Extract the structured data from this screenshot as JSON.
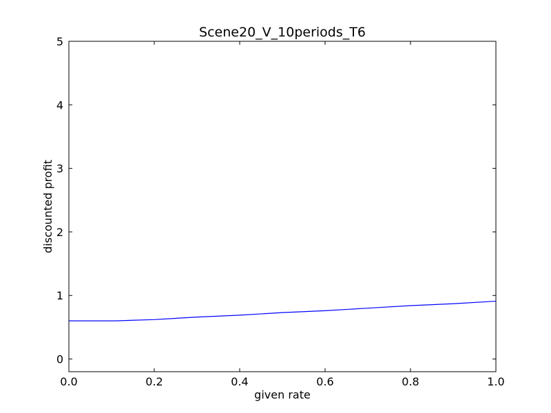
{
  "chart_data": {
    "type": "line",
    "title": "Scene20_V_10periods_T6",
    "xlabel": "given rate",
    "ylabel": "discounted profit",
    "xlim": [
      0.0,
      1.0
    ],
    "ylim": [
      -0.2,
      5.0
    ],
    "xticks": [
      "0.0",
      "0.2",
      "0.4",
      "0.6",
      "0.8",
      "1.0"
    ],
    "yticks": [
      "0",
      "1",
      "2",
      "3",
      "4",
      "5"
    ],
    "grid": false,
    "series": [
      {
        "color": "#0000ff",
        "x": [
          0.0,
          0.05,
          0.11,
          0.15,
          0.2,
          0.3,
          0.4,
          0.5,
          0.6,
          0.7,
          0.8,
          0.9,
          1.0
        ],
        "y": [
          0.6,
          0.6,
          0.6,
          0.61,
          0.62,
          0.66,
          0.69,
          0.73,
          0.76,
          0.8,
          0.84,
          0.87,
          0.91
        ]
      }
    ]
  }
}
